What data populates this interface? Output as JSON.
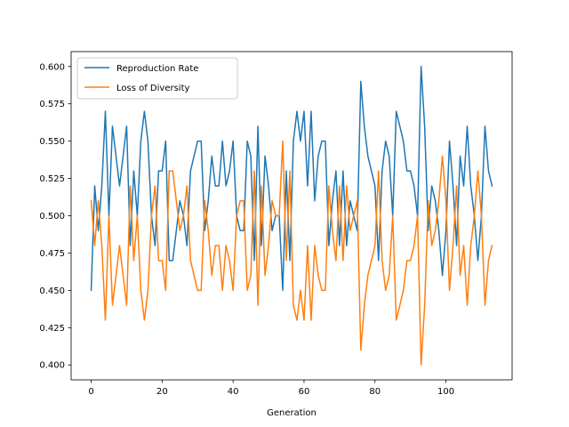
{
  "chart_data": {
    "type": "line",
    "title": "",
    "xlabel": "Generation",
    "ylabel": "",
    "xlim": [
      -5.65,
      118.65
    ],
    "ylim": [
      0.39,
      0.61
    ],
    "x_ticks": [
      0,
      20,
      40,
      60,
      80,
      100
    ],
    "y_ticks": [
      0.4,
      0.425,
      0.45,
      0.475,
      0.5,
      0.525,
      0.55,
      0.575,
      0.6
    ],
    "y_tick_labels": [
      "0.400",
      "0.425",
      "0.450",
      "0.475",
      "0.500",
      "0.525",
      "0.550",
      "0.575",
      "0.600"
    ],
    "grid": false,
    "legend_position": "upper-left",
    "series": [
      {
        "name": "Reproduction Rate",
        "color": "#1f77b4",
        "values": [
          0.45,
          0.52,
          0.49,
          0.52,
          0.57,
          0.5,
          0.56,
          0.54,
          0.52,
          0.54,
          0.56,
          0.48,
          0.53,
          0.5,
          0.55,
          0.57,
          0.55,
          0.5,
          0.48,
          0.53,
          0.53,
          0.55,
          0.47,
          0.47,
          0.49,
          0.51,
          0.5,
          0.48,
          0.53,
          0.54,
          0.55,
          0.55,
          0.49,
          0.51,
          0.54,
          0.52,
          0.52,
          0.55,
          0.52,
          0.53,
          0.55,
          0.5,
          0.49,
          0.49,
          0.55,
          0.54,
          0.47,
          0.56,
          0.48,
          0.54,
          0.52,
          0.49,
          0.5,
          0.5,
          0.45,
          0.53,
          0.47,
          0.55,
          0.57,
          0.55,
          0.57,
          0.52,
          0.57,
          0.51,
          0.54,
          0.55,
          0.55,
          0.48,
          0.51,
          0.53,
          0.48,
          0.53,
          0.48,
          0.51,
          0.5,
          0.49,
          0.59,
          0.56,
          0.54,
          0.53,
          0.52,
          0.47,
          0.53,
          0.55,
          0.54,
          0.5,
          0.57,
          0.56,
          0.55,
          0.53,
          0.53,
          0.52,
          0.5,
          0.6,
          0.56,
          0.49,
          0.52,
          0.51,
          0.49,
          0.46,
          0.49,
          0.55,
          0.52,
          0.48,
          0.54,
          0.52,
          0.56,
          0.52,
          0.5,
          0.47,
          0.5,
          0.56,
          0.53,
          0.52
        ]
      },
      {
        "name": "Loss of Diversity",
        "color": "#ff7f0e",
        "values": [
          0.51,
          0.48,
          0.51,
          0.48,
          0.43,
          0.5,
          0.44,
          0.46,
          0.48,
          0.46,
          0.44,
          0.52,
          0.47,
          0.5,
          0.45,
          0.43,
          0.45,
          0.5,
          0.52,
          0.47,
          0.47,
          0.45,
          0.53,
          0.53,
          0.51,
          0.49,
          0.5,
          0.52,
          0.47,
          0.46,
          0.45,
          0.45,
          0.51,
          0.49,
          0.46,
          0.48,
          0.48,
          0.45,
          0.48,
          0.47,
          0.45,
          0.5,
          0.51,
          0.51,
          0.45,
          0.46,
          0.53,
          0.44,
          0.52,
          0.46,
          0.48,
          0.51,
          0.5,
          0.5,
          0.55,
          0.47,
          0.53,
          0.44,
          0.43,
          0.45,
          0.43,
          0.48,
          0.43,
          0.48,
          0.46,
          0.45,
          0.45,
          0.52,
          0.49,
          0.47,
          0.52,
          0.47,
          0.52,
          0.49,
          0.5,
          0.51,
          0.41,
          0.44,
          0.46,
          0.47,
          0.48,
          0.53,
          0.47,
          0.45,
          0.46,
          0.5,
          0.43,
          0.44,
          0.45,
          0.47,
          0.47,
          0.48,
          0.5,
          0.4,
          0.44,
          0.51,
          0.48,
          0.49,
          0.51,
          0.54,
          0.51,
          0.45,
          0.48,
          0.52,
          0.46,
          0.48,
          0.44,
          0.48,
          0.5,
          0.53,
          0.5,
          0.44,
          0.47,
          0.48
        ]
      }
    ]
  }
}
